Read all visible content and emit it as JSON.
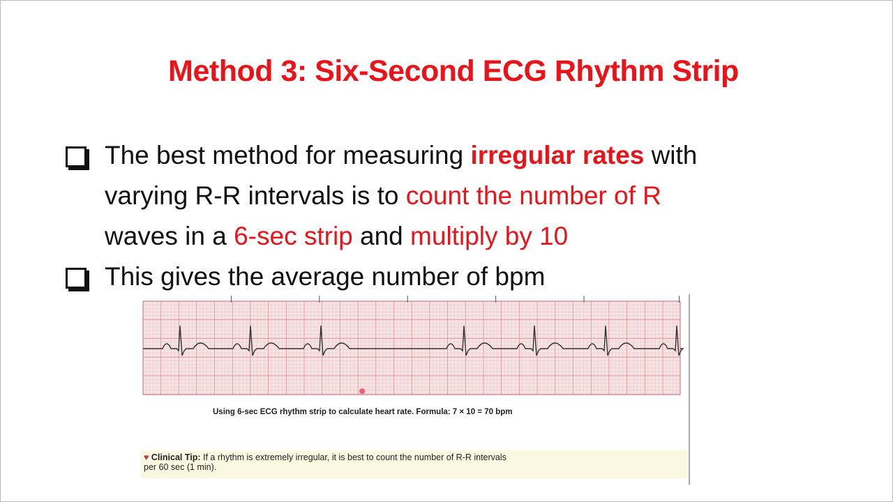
{
  "title": "Method 3: Six-Second ECG Rhythm Strip",
  "bullets": [
    {
      "line1_a": "The best method for measuring ",
      "line1_b": "irregular rates",
      "line1_c": " with",
      "line2_a": "varying R-R intervals is to ",
      "line2_b": "count the number of R",
      "line3_a": "waves in a ",
      "line3_b": "6-sec strip",
      "line3_c": " and ",
      "line3_d": "multiply by 10"
    },
    {
      "text": "This gives the average number of bpm"
    }
  ],
  "figure": {
    "caption": "Using 6-sec ECG rhythm strip to calculate heart rate. Formula: 7 × 10 = 70 bpm",
    "tip_label": "Clinical Tip:",
    "tip_text": " If a rhythm is extremely irregular, it is best to count the number of R-R intervals",
    "tip_text2": "per 60 sec (1 min).",
    "strip_seconds": 6,
    "r_wave_count": 7,
    "grid_color": "#d9888f",
    "trace_color": "#333333"
  },
  "colors": {
    "accent": "#e8141a"
  }
}
